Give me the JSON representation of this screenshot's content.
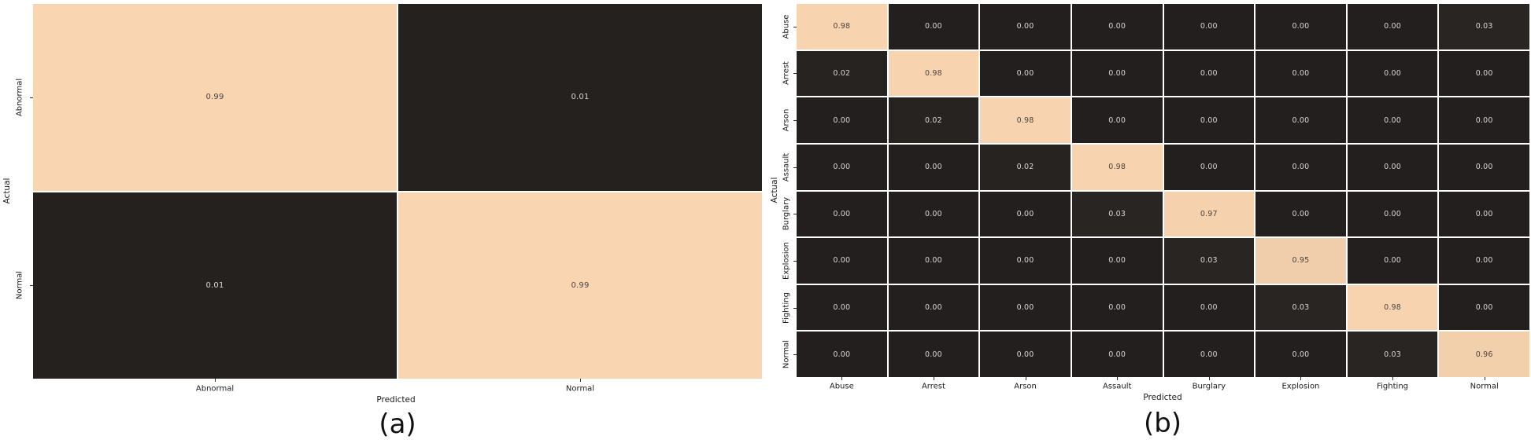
{
  "figure": {
    "background": "#ffffff",
    "colormap": {
      "low": "#231f1e",
      "high": "#fbd7b2"
    },
    "annotation_text_dark": "#4a453f",
    "annotation_text_light": "#d8d6d4",
    "tick_color": "#2b2b2b"
  },
  "chart_data": [
    {
      "type": "heatmap",
      "title": "(a)",
      "xlabel": "Predicted",
      "ylabel": "Actual",
      "x_categories": [
        "Abnormal",
        "Normal"
      ],
      "y_categories": [
        "Abnormal",
        "Normal"
      ],
      "values": [
        [
          0.99,
          0.01
        ],
        [
          0.01,
          0.99
        ]
      ],
      "value_format": "2-decimals",
      "vmin": 0,
      "vmax": 1,
      "legend": "none",
      "grid_lines": "white"
    },
    {
      "type": "heatmap",
      "title": "(b)",
      "xlabel": "Predicted",
      "ylabel": "Actual",
      "x_categories": [
        "Abuse",
        "Arrest",
        "Arson",
        "Assault",
        "Burglary",
        "Explosion",
        "Fighting",
        "Normal"
      ],
      "y_categories": [
        "Abuse",
        "Arrest",
        "Arson",
        "Assault",
        "Burglary",
        "Explosion",
        "Fighting",
        "Normal"
      ],
      "values": [
        [
          0.98,
          0.0,
          0.0,
          0.0,
          0.0,
          0.0,
          0.0,
          0.03
        ],
        [
          0.02,
          0.98,
          0.0,
          0.0,
          0.0,
          0.0,
          0.0,
          0.0
        ],
        [
          0.0,
          0.02,
          0.98,
          0.0,
          0.0,
          0.0,
          0.0,
          0.0
        ],
        [
          0.0,
          0.0,
          0.02,
          0.98,
          0.0,
          0.0,
          0.0,
          0.0
        ],
        [
          0.0,
          0.0,
          0.0,
          0.03,
          0.97,
          0.0,
          0.0,
          0.0
        ],
        [
          0.0,
          0.0,
          0.0,
          0.0,
          0.03,
          0.95,
          0.0,
          0.0
        ],
        [
          0.0,
          0.0,
          0.0,
          0.0,
          0.0,
          0.03,
          0.98,
          0.0
        ],
        [
          0.0,
          0.0,
          0.0,
          0.0,
          0.0,
          0.0,
          0.03,
          0.96
        ]
      ],
      "value_format": "2-decimals",
      "vmin": 0,
      "vmax": 1,
      "legend": "none",
      "grid_lines": "white"
    }
  ]
}
